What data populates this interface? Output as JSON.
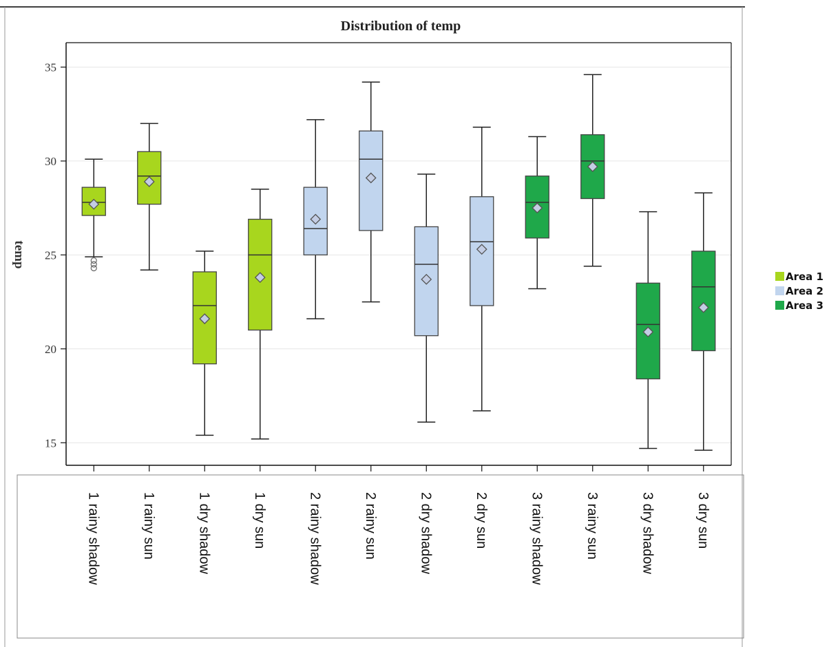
{
  "chart_data": {
    "type": "box",
    "title": "Distribution of temp",
    "ylabel": "temp",
    "xlabel": "",
    "ylim": [
      13.8,
      36.3
    ],
    "yticks": [
      15,
      20,
      25,
      30,
      35
    ],
    "grid": true,
    "legend_position": "right",
    "legend": [
      {
        "name": "Area 1",
        "color": "#a8d61e"
      },
      {
        "name": "Area 2",
        "color": "#c1d5ee"
      },
      {
        "name": "Area 3",
        "color": "#1fa84a"
      }
    ],
    "categories": [
      "1 rainy shadow",
      "1 rainy sun",
      "1 dry shadow",
      "1 dry sun",
      "2 rainy shadow",
      "2 rainy sun",
      "2 dry shadow",
      "2 dry sun",
      "3 rainy shadow",
      "3 rainy sun",
      "3 dry shadow",
      "3 dry sun"
    ],
    "boxes": [
      {
        "area": 0,
        "min": 24.9,
        "q1": 27.1,
        "median": 27.8,
        "q3": 28.6,
        "max": 30.1,
        "mean": 27.7,
        "outliers": [
          24.7,
          24.5,
          24.3
        ]
      },
      {
        "area": 0,
        "min": 24.2,
        "q1": 27.7,
        "median": 29.2,
        "q3": 30.5,
        "max": 32.0,
        "mean": 28.9,
        "outliers": []
      },
      {
        "area": 0,
        "min": 15.4,
        "q1": 19.2,
        "median": 22.3,
        "q3": 24.1,
        "max": 25.2,
        "mean": 21.6,
        "outliers": []
      },
      {
        "area": 0,
        "min": 15.2,
        "q1": 21.0,
        "median": 25.0,
        "q3": 26.9,
        "max": 28.5,
        "mean": 23.8,
        "outliers": []
      },
      {
        "area": 1,
        "min": 21.6,
        "q1": 25.0,
        "median": 26.4,
        "q3": 28.6,
        "max": 32.2,
        "mean": 26.9,
        "outliers": []
      },
      {
        "area": 1,
        "min": 22.5,
        "q1": 26.3,
        "median": 30.1,
        "q3": 31.6,
        "max": 34.2,
        "mean": 29.1,
        "outliers": []
      },
      {
        "area": 1,
        "min": 16.1,
        "q1": 20.7,
        "median": 24.5,
        "q3": 26.5,
        "max": 29.3,
        "mean": 23.7,
        "outliers": []
      },
      {
        "area": 1,
        "min": 16.7,
        "q1": 22.3,
        "median": 25.7,
        "q3": 28.1,
        "max": 31.8,
        "mean": 25.3,
        "outliers": []
      },
      {
        "area": 2,
        "min": 23.2,
        "q1": 25.9,
        "median": 27.8,
        "q3": 29.2,
        "max": 31.3,
        "mean": 27.5,
        "outliers": []
      },
      {
        "area": 2,
        "min": 24.4,
        "q1": 28.0,
        "median": 30.0,
        "q3": 31.4,
        "max": 34.6,
        "mean": 29.7,
        "outliers": []
      },
      {
        "area": 2,
        "min": 14.7,
        "q1": 18.4,
        "median": 21.3,
        "q3": 23.5,
        "max": 27.3,
        "mean": 20.9,
        "outliers": []
      },
      {
        "area": 2,
        "min": 14.6,
        "q1": 19.9,
        "median": 23.3,
        "q3": 25.2,
        "max": 28.3,
        "mean": 22.2,
        "outliers": []
      }
    ]
  }
}
